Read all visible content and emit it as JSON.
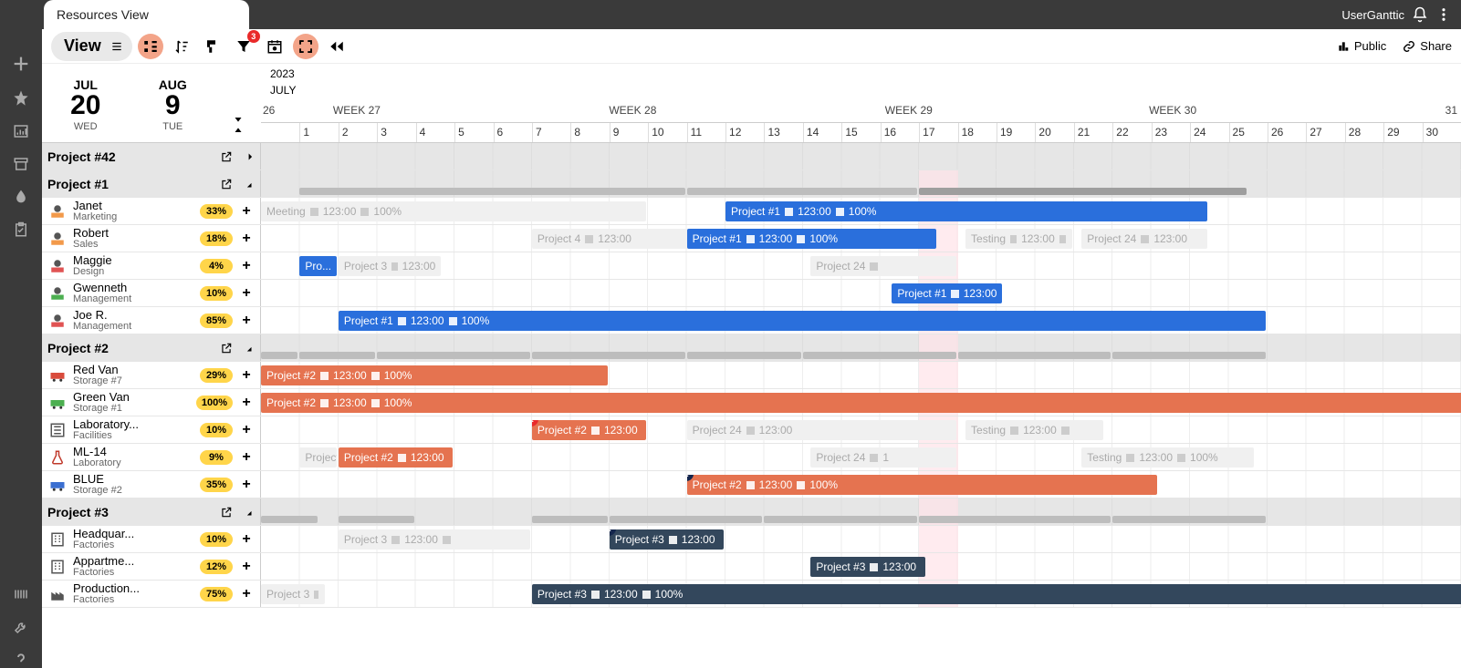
{
  "tab_title": "Resources View",
  "user": "UserGanttic",
  "toolbar": {
    "view_label": "View",
    "filter_badge": "3",
    "public": "Public",
    "share": "Share"
  },
  "header": {
    "year": "2023",
    "month": "JULY",
    "date_a": {
      "mon": "JUL",
      "day": "20",
      "dow": "WED"
    },
    "date_b": {
      "mon": "AUG",
      "day": "9",
      "dow": "TUE"
    },
    "start_day_label": "26",
    "end_day_label": "31",
    "weeks": [
      {
        "label": "WEEK 27",
        "pos_pct": 6
      },
      {
        "label": "WEEK 28",
        "pos_pct": 29
      },
      {
        "label": "WEEK 29",
        "pos_pct": 52
      },
      {
        "label": "WEEK 30",
        "pos_pct": 74
      }
    ],
    "days": [
      "1",
      "2",
      "3",
      "4",
      "5",
      "6",
      "7",
      "8",
      "9",
      "10",
      "11",
      "12",
      "13",
      "14",
      "15",
      "16",
      "17",
      "18",
      "19",
      "20",
      "21",
      "22",
      "23",
      "24",
      "25",
      "26",
      "27",
      "28",
      "29",
      "30"
    ]
  },
  "colors": {
    "blue": "#2a6fdc",
    "orange": "#e57350",
    "navy": "#33475c",
    "ghost": "#f0f0f0",
    "highlight": "#ffe3e8"
  },
  "highlight_day": 18,
  "day_count": 31,
  "groups": [
    {
      "id": "p42",
      "title": "Project #42",
      "expand_dir": "right",
      "summary": [],
      "rows": []
    },
    {
      "id": "p1",
      "title": "Project #1",
      "expand_dir": "down",
      "summary": [
        {
          "s": 1,
          "e": 11
        },
        {
          "s": 11,
          "e": 17
        },
        {
          "s": 17,
          "e": 25.5,
          "h": true
        }
      ],
      "rows": [
        {
          "name": "Janet",
          "role": "Marketing",
          "util": "33%",
          "icon": "person-orange",
          "bars": [
            {
              "s": 0,
              "e": 10,
              "color": "ghost",
              "text": "Meeting ◼ 123:00 ◼ 100%"
            },
            {
              "s": 12,
              "e": 24.5,
              "color": "blue",
              "text": "Project #1 ◼ 123:00 ◼ 100%"
            }
          ]
        },
        {
          "name": "Robert",
          "role": "Sales",
          "util": "18%",
          "icon": "person-orange",
          "bars": [
            {
              "s": 7,
              "e": 15,
              "color": "ghost",
              "text": "Project 4 ◼ 123:00"
            },
            {
              "s": 11,
              "e": 17.5,
              "color": "blue",
              "text": "Project #1 ◼ 123:00 ◼ 100%"
            },
            {
              "s": 18.2,
              "e": 21,
              "color": "ghost",
              "text": "Testing ◼ 123:00 ◼"
            },
            {
              "s": 21.2,
              "e": 24.5,
              "color": "ghost",
              "text": "Project 24 ◼ 123:00"
            }
          ]
        },
        {
          "name": "Maggie",
          "role": "Design",
          "util": "4%",
          "icon": "person-red",
          "bars": [
            {
              "s": 1,
              "e": 2,
              "color": "blue",
              "text": "Pro..."
            },
            {
              "s": 2,
              "e": 4.7,
              "color": "ghost",
              "text": "Project 3 ◼ 123:00"
            },
            {
              "s": 14.2,
              "e": 18,
              "color": "ghost",
              "text": "Project 24 ◼"
            }
          ]
        },
        {
          "name": "Gwenneth",
          "role": "Management",
          "util": "10%",
          "icon": "person-green",
          "bars": [
            {
              "s": 16.3,
              "e": 19.2,
              "color": "blue",
              "text": "Project #1 ◼ 123:00"
            }
          ]
        },
        {
          "name": "Joe R.",
          "role": "Management",
          "util": "85%",
          "icon": "person-red",
          "bars": [
            {
              "s": 2,
              "e": 26,
              "color": "blue",
              "text": "Project #1 ◼ 123:00 ◼ 100%"
            }
          ]
        }
      ]
    },
    {
      "id": "p2",
      "title": "Project #2",
      "expand_dir": "down",
      "summary": [
        {
          "s": 0,
          "e": 1
        },
        {
          "s": 1,
          "e": 3
        },
        {
          "s": 3,
          "e": 7
        },
        {
          "s": 7,
          "e": 11
        },
        {
          "s": 11,
          "e": 14
        },
        {
          "s": 14,
          "e": 18
        },
        {
          "s": 18,
          "e": 22
        },
        {
          "s": 22,
          "e": 26
        }
      ],
      "rows": [
        {
          "name": "Red Van",
          "role": "Storage #7",
          "util": "29%",
          "icon": "van-red",
          "bars": [
            {
              "s": 0,
              "e": 9,
              "color": "orange",
              "text": "Project #2 ◼ 123:00 ◼ 100%"
            }
          ]
        },
        {
          "name": "Green Van",
          "role": "Storage #1",
          "util": "100%",
          "icon": "van-green",
          "bars": [
            {
              "s": 0,
              "e": 31.5,
              "color": "orange",
              "text": "Project #2 ◼ 123:00 ◼ 100%"
            }
          ]
        },
        {
          "name": "Laboratory...",
          "role": "Facilities",
          "util": "10%",
          "icon": "lab",
          "bars": [
            {
              "s": 7,
              "e": 10,
              "color": "orange",
              "text": "Project #2 ◼ 123:00",
              "badge": "1",
              "badge_color": "red"
            },
            {
              "s": 11,
              "e": 18,
              "color": "ghost",
              "text": "Project 24 ◼ 123:00"
            },
            {
              "s": 18.2,
              "e": 21.8,
              "color": "ghost",
              "text": "Testing ◼ 123:00 ◼"
            }
          ]
        },
        {
          "name": "ML-14",
          "role": "Laboratory",
          "util": "9%",
          "icon": "flask",
          "bars": [
            {
              "s": 1,
              "e": 2,
              "color": "ghost",
              "text": "Project"
            },
            {
              "s": 2,
              "e": 5,
              "color": "orange",
              "text": "Project #2 ◼ 123:00"
            },
            {
              "s": 14.2,
              "e": 18,
              "color": "ghost",
              "text": "Project 24 ◼ 1"
            },
            {
              "s": 21.2,
              "e": 25.7,
              "color": "ghost",
              "text": "Testing ◼ 123:00 ◼ 100%"
            }
          ]
        },
        {
          "name": "BLUE",
          "role": "Storage #2",
          "util": "35%",
          "icon": "van-blue",
          "bars": [
            {
              "s": 11,
              "e": 23.2,
              "color": "orange",
              "text": "Project #2 ◼ 123:00 ◼ 100%",
              "badge": "1",
              "badge_color": "navy"
            }
          ]
        }
      ]
    },
    {
      "id": "p3",
      "title": "Project #3",
      "expand_dir": "down",
      "summary": [
        {
          "s": 0,
          "e": 1.5
        },
        {
          "s": 2,
          "e": 4
        },
        {
          "s": 7,
          "e": 9
        },
        {
          "s": 9,
          "e": 13
        },
        {
          "s": 13,
          "e": 17
        },
        {
          "s": 17,
          "e": 22
        },
        {
          "s": 22,
          "e": 26
        }
      ],
      "rows": [
        {
          "name": "Headquar...",
          "role": "Factories",
          "util": "10%",
          "icon": "building",
          "bars": [
            {
              "s": 2,
              "e": 7,
              "color": "ghost",
              "text": "Project 3 ◼ 123:00 ◼"
            },
            {
              "s": 9,
              "e": 12,
              "color": "navy",
              "text": "Project #3 ◼ 123:00",
              "badge": "2",
              "badge_color": "navy"
            }
          ]
        },
        {
          "name": "Appartme...",
          "role": "Factories",
          "util": "12%",
          "icon": "building",
          "bars": [
            {
              "s": 14.2,
              "e": 17.2,
              "color": "navy",
              "text": "Project #3 ◼ 123:00"
            }
          ]
        },
        {
          "name": "Production...",
          "role": "Factories",
          "util": "75%",
          "icon": "factory",
          "bars": [
            {
              "s": 0,
              "e": 1.7,
              "color": "ghost",
              "text": "Project 3 ◼"
            },
            {
              "s": 7,
              "e": 31.5,
              "color": "navy",
              "text": "Project #3 ◼ 123:00 ◼ 100%"
            }
          ]
        }
      ]
    }
  ]
}
